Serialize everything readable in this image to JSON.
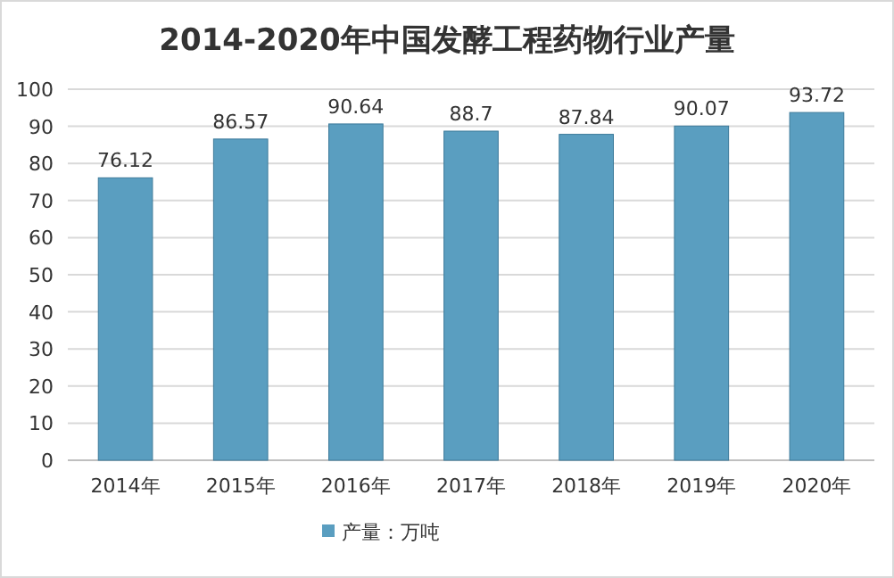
{
  "chart_data": {
    "type": "bar",
    "title": "2014-2020年中国发酵工程药物行业产量",
    "categories": [
      "2014年",
      "2015年",
      "2016年",
      "2017年",
      "2018年",
      "2019年",
      "2020年"
    ],
    "series": [
      {
        "name": "产量：万吨",
        "color": "#5a9ec0",
        "values": [
          76.12,
          86.57,
          90.64,
          88.7,
          87.84,
          90.07,
          93.72
        ]
      }
    ],
    "ylim": [
      0,
      100
    ],
    "yticks": [
      0,
      10,
      20,
      30,
      40,
      50,
      60,
      70,
      80,
      90,
      100
    ],
    "grid": "y",
    "legend": "bottom",
    "data_labels": true
  }
}
